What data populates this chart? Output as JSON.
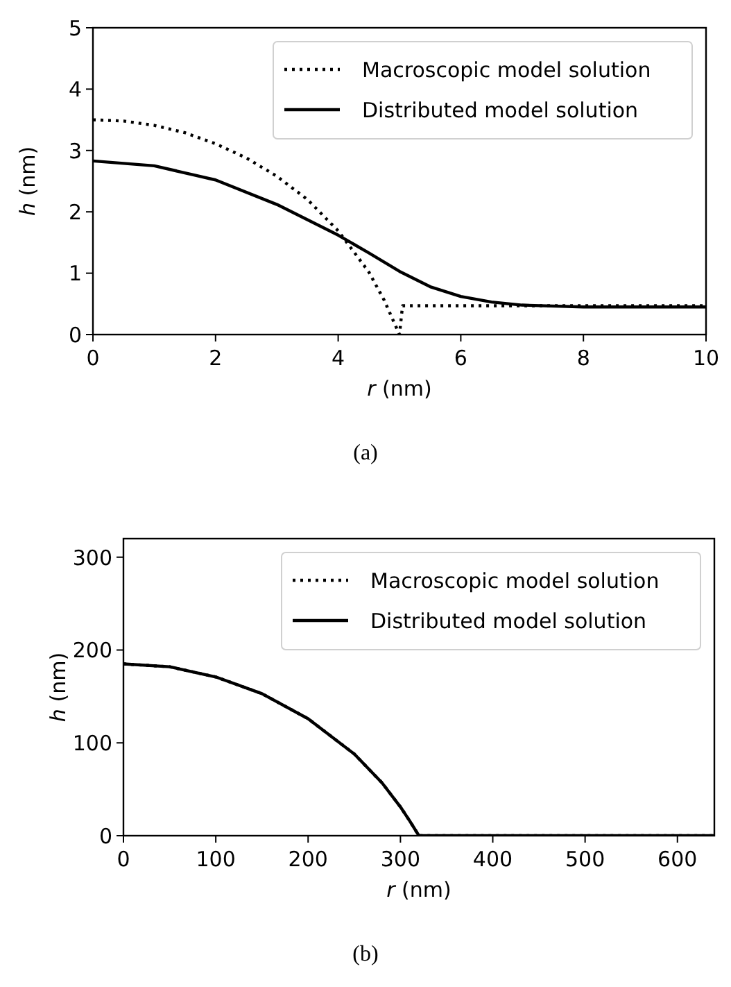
{
  "chart_data": [
    {
      "type": "line",
      "xlabel": "r (nm)",
      "ylabel": "h (nm)",
      "xlim": [
        0,
        10
      ],
      "ylim": [
        0,
        5
      ],
      "xticks": [
        0,
        2,
        4,
        6,
        8,
        10
      ],
      "yticks": [
        0,
        1,
        2,
        3,
        4,
        5
      ],
      "legend": "top right",
      "marker": "none",
      "annotations": [
        "(a)"
      ],
      "series": [
        {
          "name": "Macroscopic model solution",
          "color": "#000000",
          "line_style": "dotted",
          "x": [
            0,
            0.5,
            1,
            1.5,
            2,
            2.5,
            3,
            3.5,
            4,
            4.5,
            4.75,
            5,
            5.05,
            6,
            7,
            8,
            9,
            10
          ],
          "values": [
            3.5,
            3.48,
            3.41,
            3.29,
            3.11,
            2.88,
            2.58,
            2.2,
            1.69,
            1.02,
            0.56,
            0,
            0.47,
            0.47,
            0.47,
            0.47,
            0.47,
            0.47
          ]
        },
        {
          "name": "Distributed model solution",
          "color": "#000000",
          "line_style": "solid",
          "x": [
            0,
            1,
            2,
            3,
            4,
            4.5,
            5,
            5.5,
            6,
            6.5,
            7,
            8,
            9,
            10
          ],
          "values": [
            2.83,
            2.75,
            2.52,
            2.12,
            1.62,
            1.33,
            1.03,
            0.78,
            0.62,
            0.53,
            0.48,
            0.45,
            0.45,
            0.45
          ]
        }
      ]
    },
    {
      "type": "line",
      "xlabel": "r (nm)",
      "ylabel": "h (nm)",
      "xlim": [
        0,
        640
      ],
      "ylim": [
        0,
        320
      ],
      "xticks": [
        0,
        100,
        200,
        300,
        400,
        500,
        600
      ],
      "yticks": [
        0,
        100,
        200,
        300
      ],
      "legend": "top right",
      "marker": "none",
      "annotations": [
        "(b)"
      ],
      "series": [
        {
          "name": "Macroscopic model solution",
          "color": "#000000",
          "line_style": "dotted",
          "x": [
            0,
            50,
            100,
            150,
            200,
            250,
            280,
            300,
            310,
            320,
            400,
            500,
            640
          ],
          "values": [
            185,
            182,
            171,
            153,
            126,
            88,
            57,
            31,
            16,
            0,
            0,
            0,
            0
          ]
        },
        {
          "name": "Distributed model solution",
          "color": "#000000",
          "line_style": "solid",
          "x": [
            0,
            50,
            100,
            150,
            200,
            250,
            280,
            300,
            310,
            320,
            400,
            500,
            640
          ],
          "values": [
            185,
            182,
            171,
            153,
            126,
            88,
            57,
            31,
            16,
            0,
            0,
            0,
            0
          ]
        }
      ]
    }
  ]
}
